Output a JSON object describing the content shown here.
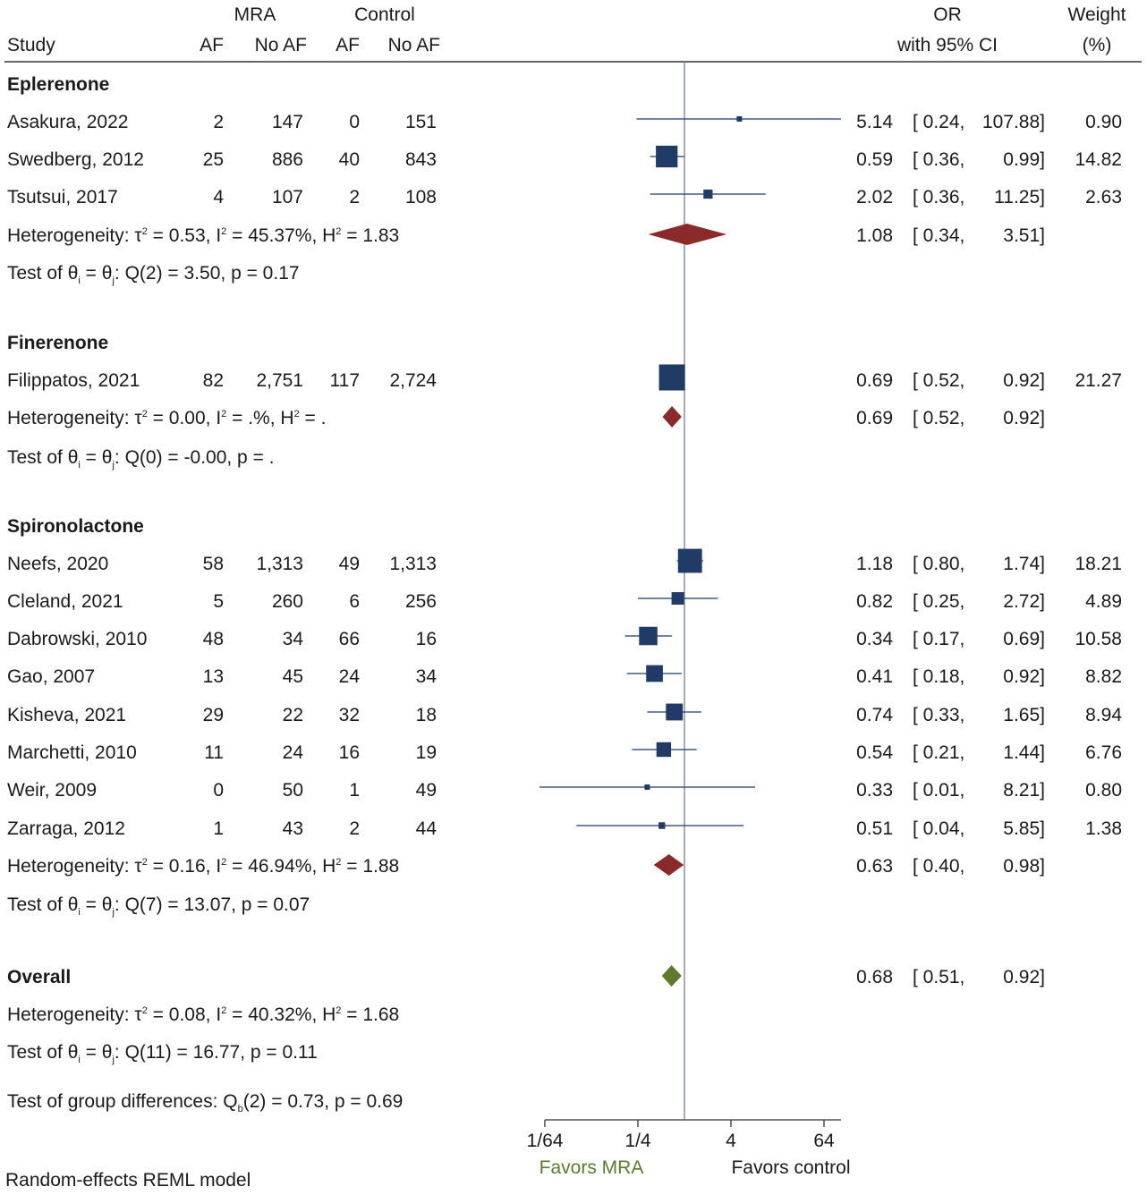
{
  "chart_data": {
    "type": "forest",
    "model_note": "Random-effects REML model",
    "headers": {
      "study": "Study",
      "mra": "MRA",
      "control": "Control",
      "af": "AF",
      "no_af": "No AF",
      "or": "OR",
      "ci": "with 95% CI",
      "weight": "Weight",
      "weight_unit": "(%)"
    },
    "axis": {
      "scale": "log2",
      "ticks": [
        "1/64",
        "1/4",
        "4",
        "64"
      ],
      "tick_values": [
        0.015625,
        0.25,
        4,
        64
      ],
      "range": [
        0.015625,
        128
      ],
      "reference_line": 1,
      "left_label": "Favors MRA",
      "right_label": "Favors control",
      "left_label_color": "#5a7a2e"
    },
    "colors": {
      "study_marker": "#1f3b66",
      "subgroup_diamond": "#8b2a2a",
      "overall_diamond": "#5d7a2f"
    },
    "groups": [
      {
        "name": "Eplerenone",
        "studies": [
          {
            "study": "Asakura, 2022",
            "mra_af": "2",
            "mra_noaf": "147",
            "ctl_af": "0",
            "ctl_noaf": "151",
            "or": 5.14,
            "lo": 0.24,
            "hi": 107.88,
            "or_t": "5.14",
            "lo_t": "[ 0.24,",
            "hi_t": "107.88]",
            "weight": 0.9,
            "weight_t": "0.90"
          },
          {
            "study": "Swedberg, 2012",
            "mra_af": "25",
            "mra_noaf": "886",
            "ctl_af": "40",
            "ctl_noaf": "843",
            "or": 0.59,
            "lo": 0.36,
            "hi": 0.99,
            "or_t": "0.59",
            "lo_t": "[ 0.36,",
            "hi_t": "0.99]",
            "weight": 14.82,
            "weight_t": "14.82"
          },
          {
            "study": "Tsutsui, 2017",
            "mra_af": "4",
            "mra_noaf": "107",
            "ctl_af": "2",
            "ctl_noaf": "108",
            "or": 2.02,
            "lo": 0.36,
            "hi": 11.25,
            "or_t": "2.02",
            "lo_t": "[ 0.36,",
            "hi_t": "11.25]",
            "weight": 2.63,
            "weight_t": "2.63"
          }
        ],
        "het_prefix": "Heterogeneity: τ",
        "het_tau2": " = 0.53, I",
        "het_i2": " = 45.37%, H",
        "het_h2": " = 1.83",
        "pooled": {
          "or": 1.08,
          "lo": 0.34,
          "hi": 3.51,
          "or_t": "1.08",
          "lo_t": "[ 0.34,",
          "hi_t": "3.51]"
        },
        "test_q": ": Q(2) = 3.50, p = 0.17"
      },
      {
        "name": "Finerenone",
        "studies": [
          {
            "study": "Filippatos, 2021",
            "mra_af": "82",
            "mra_noaf": "2,751",
            "ctl_af": "117",
            "ctl_noaf": "2,724",
            "or": 0.69,
            "lo": 0.52,
            "hi": 0.92,
            "or_t": "0.69",
            "lo_t": "[ 0.52,",
            "hi_t": "0.92]",
            "weight": 21.27,
            "weight_t": "21.27"
          }
        ],
        "het_prefix": "Heterogeneity: τ",
        "het_tau2": " = 0.00, I",
        "het_i2": " = .%, H",
        "het_h2": " = .",
        "pooled": {
          "or": 0.69,
          "lo": 0.52,
          "hi": 0.92,
          "or_t": "0.69",
          "lo_t": "[ 0.52,",
          "hi_t": "0.92]"
        },
        "test_q": ": Q(0) = -0.00, p = ."
      },
      {
        "name": "Spironolactone",
        "studies": [
          {
            "study": "Neefs, 2020",
            "mra_af": "58",
            "mra_noaf": "1,313",
            "ctl_af": "49",
            "ctl_noaf": "1,313",
            "or": 1.18,
            "lo": 0.8,
            "hi": 1.74,
            "or_t": "1.18",
            "lo_t": "[ 0.80,",
            "hi_t": "1.74]",
            "weight": 18.21,
            "weight_t": "18.21"
          },
          {
            "study": "Cleland, 2021",
            "mra_af": "5",
            "mra_noaf": "260",
            "ctl_af": "6",
            "ctl_noaf": "256",
            "or": 0.82,
            "lo": 0.25,
            "hi": 2.72,
            "or_t": "0.82",
            "lo_t": "[ 0.25,",
            "hi_t": "2.72]",
            "weight": 4.89,
            "weight_t": "4.89"
          },
          {
            "study": "Dabrowski, 2010",
            "mra_af": "48",
            "mra_noaf": "34",
            "ctl_af": "66",
            "ctl_noaf": "16",
            "or": 0.34,
            "lo": 0.17,
            "hi": 0.69,
            "or_t": "0.34",
            "lo_t": "[ 0.17,",
            "hi_t": "0.69]",
            "weight": 10.58,
            "weight_t": "10.58"
          },
          {
            "study": "Gao, 2007",
            "mra_af": "13",
            "mra_noaf": "45",
            "ctl_af": "24",
            "ctl_noaf": "34",
            "or": 0.41,
            "lo": 0.18,
            "hi": 0.92,
            "or_t": "0.41",
            "lo_t": "[ 0.18,",
            "hi_t": "0.92]",
            "weight": 8.82,
            "weight_t": "8.82"
          },
          {
            "study": "Kisheva, 2021",
            "mra_af": "29",
            "mra_noaf": "22",
            "ctl_af": "32",
            "ctl_noaf": "18",
            "or": 0.74,
            "lo": 0.33,
            "hi": 1.65,
            "or_t": "0.74",
            "lo_t": "[ 0.33,",
            "hi_t": "1.65]",
            "weight": 8.94,
            "weight_t": "8.94"
          },
          {
            "study": "Marchetti, 2010",
            "mra_af": "11",
            "mra_noaf": "24",
            "ctl_af": "16",
            "ctl_noaf": "19",
            "or": 0.54,
            "lo": 0.21,
            "hi": 1.44,
            "or_t": "0.54",
            "lo_t": "[ 0.21,",
            "hi_t": "1.44]",
            "weight": 6.76,
            "weight_t": "6.76"
          },
          {
            "study": "Weir, 2009",
            "mra_af": "0",
            "mra_noaf": "50",
            "ctl_af": "1",
            "ctl_noaf": "49",
            "or": 0.33,
            "lo": 0.01,
            "hi": 8.21,
            "or_t": "0.33",
            "lo_t": "[ 0.01,",
            "hi_t": "8.21]",
            "weight": 0.8,
            "weight_t": "0.80"
          },
          {
            "study": "Zarraga, 2012",
            "mra_af": "1",
            "mra_noaf": "43",
            "ctl_af": "2",
            "ctl_noaf": "44",
            "or": 0.51,
            "lo": 0.04,
            "hi": 5.85,
            "or_t": "0.51",
            "lo_t": "[ 0.04,",
            "hi_t": "5.85]",
            "weight": 1.38,
            "weight_t": "1.38"
          }
        ],
        "het_prefix": "Heterogeneity: τ",
        "het_tau2": " = 0.16, I",
        "het_i2": " = 46.94%, H",
        "het_h2": " = 1.88",
        "pooled": {
          "or": 0.63,
          "lo": 0.4,
          "hi": 0.98,
          "or_t": "0.63",
          "lo_t": "[ 0.40,",
          "hi_t": "0.98]"
        },
        "test_q": ": Q(7) = 13.07, p = 0.07"
      }
    ],
    "overall": {
      "label": "Overall",
      "or": 0.68,
      "lo": 0.51,
      "hi": 0.92,
      "or_t": "0.68",
      "lo_t": "[ 0.51,",
      "hi_t": "0.92]",
      "het_prefix": "Heterogeneity: τ",
      "het_tau2": " = 0.08, I",
      "het_i2": " = 40.32%, H",
      "het_h2": " = 1.68",
      "test_q": ": Q(11) = 16.77, p = 0.11",
      "group_diff_prefix": "Test of group differences: Q",
      "group_diff_sub": "b",
      "group_diff_rest": "(2) = 0.73, p = 0.69"
    },
    "test_prefix": "Test of θ",
    "test_sub_i": "i",
    "test_eq": " = θ",
    "test_sub_j": "j",
    "sup2": "2"
  }
}
